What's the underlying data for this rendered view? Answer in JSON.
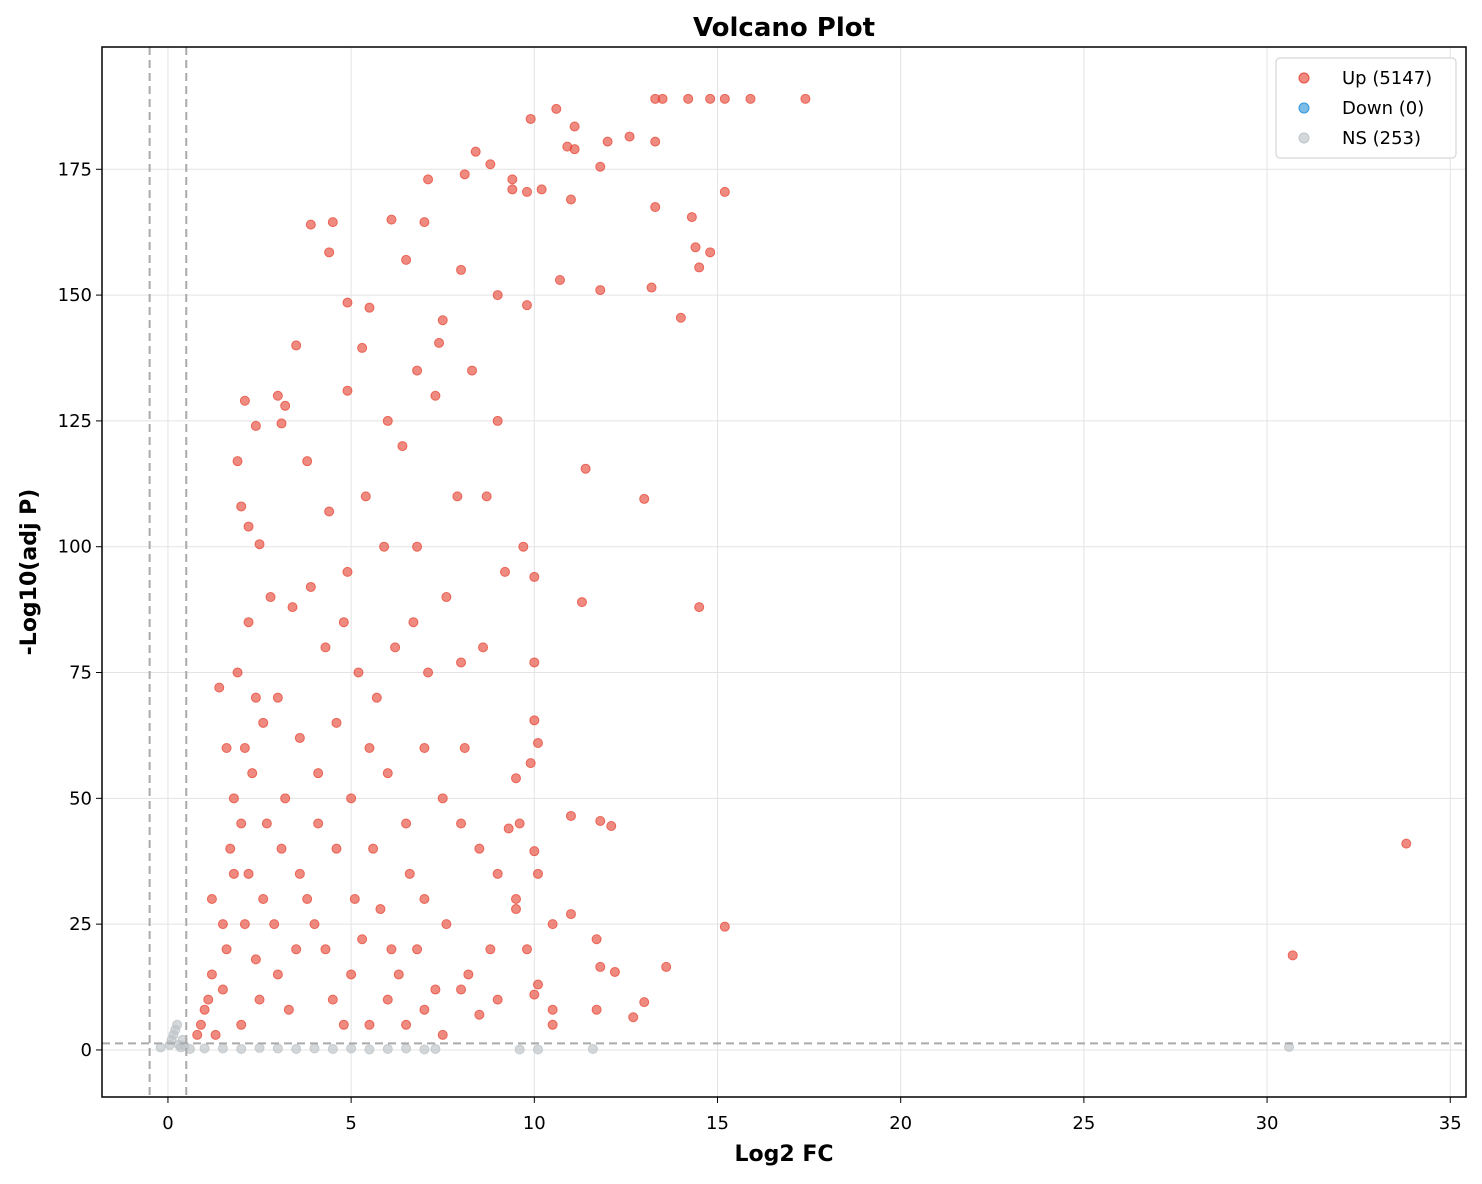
{
  "chart_data": {
    "type": "scatter",
    "title": "Volcano Plot",
    "x_label": "Log2 FC",
    "y_label": "-Log10(adj P)",
    "xlim": [
      -1.8,
      35.43
    ],
    "ylim": [
      -9.35,
      199.3
    ],
    "xticks": [
      0,
      5,
      10,
      15,
      20,
      25,
      30,
      35
    ],
    "yticks": [
      0,
      25,
      50,
      75,
      100,
      125,
      150,
      175
    ],
    "grid": true,
    "legend": "upper right",
    "thresholds": {
      "x": [
        -0.5,
        0.5
      ],
      "y": 1.3
    },
    "series": [
      {
        "name": "Up (5147)",
        "color": "#e74c3c",
        "x": [
          13.3,
          13.5,
          14.2,
          14.8,
          15.2,
          15.9,
          17.4,
          10.6,
          9.9,
          11.1,
          12.6,
          13.3,
          12.0,
          10.9,
          11.1,
          8.4,
          11.8,
          8.8,
          7.1,
          8.1,
          9.4,
          9.4,
          9.8,
          10.2,
          15.2,
          11.0,
          13.3,
          14.3,
          3.9,
          4.5,
          6.1,
          7.0,
          14.4,
          14.8,
          4.4,
          6.5,
          14.5,
          10.7,
          13.2,
          4.9,
          11.8,
          14.0,
          5.5,
          3.5,
          5.3,
          7.4,
          2.1,
          3.0,
          3.2,
          3.1,
          2.4,
          4.9,
          1.9,
          3.8,
          11.4,
          13.0,
          2.0,
          2.2,
          2.5,
          10.0,
          14.5,
          11.3,
          10.0,
          11.0,
          11.8,
          12.1,
          15.2,
          30.7,
          33.8,
          11.7,
          13.6,
          11.8,
          12.2,
          12.7,
          13.0,
          11.7,
          10.5,
          10.5,
          10.0,
          9.8,
          10.1,
          11.0,
          10.5,
          10.1,
          10.0,
          9.9,
          10.0,
          10.1,
          9.3,
          9.6,
          9.5,
          9.5,
          0.8,
          1.0,
          1.2,
          1.5,
          1.8,
          2.0,
          2.3,
          2.6,
          1.4,
          1.6,
          1.9,
          2.2,
          2.8,
          3.4,
          3.9,
          4.3,
          4.8,
          5.2,
          5.7,
          6.2,
          6.7,
          7.1,
          7.6,
          8.0,
          8.6,
          3.0,
          3.6,
          4.1,
          4.6,
          5.0,
          5.5,
          6.0,
          6.5,
          7.0,
          7.5,
          8.0,
          8.5,
          9.0,
          9.5,
          8.8,
          8.2,
          7.6,
          7.0,
          6.6,
          6.1,
          5.6,
          5.1,
          4.6,
          4.1,
          3.6,
          3.1,
          2.6,
          2.1,
          1.6,
          1.1,
          0.9,
          1.3,
          2.0,
          2.5,
          3.0,
          3.5,
          4.0,
          4.5,
          5.0,
          5.5,
          6.0,
          6.5,
          7.0,
          7.5,
          8.0,
          8.5,
          9.0,
          3.2,
          2.7,
          2.2,
          1.7,
          1.2,
          3.8,
          4.3,
          4.8,
          5.3,
          5.8,
          6.3,
          6.8,
          7.3,
          2.4,
          2.9,
          3.3,
          1.5,
          1.8,
          2.1,
          2.4,
          4.4,
          5.4,
          6.4,
          7.3,
          8.3,
          9.0,
          7.9,
          6.8,
          5.9,
          4.9,
          8.7,
          9.7,
          9.2,
          8.1,
          9.8,
          9.0,
          8.0,
          7.5,
          6.8,
          6.0
        ],
        "values": [
          189,
          189,
          189,
          189,
          189,
          189,
          189,
          187,
          185,
          183.5,
          181.5,
          180.5,
          180.5,
          179.5,
          179,
          178.5,
          175.5,
          176,
          173,
          174,
          173,
          171,
          170.5,
          171,
          170.5,
          169,
          167.5,
          165.5,
          164,
          164.5,
          165,
          164.5,
          159.5,
          158.5,
          158.5,
          157,
          155.5,
          153,
          151.5,
          148.5,
          151,
          145.5,
          147.5,
          140,
          139.5,
          140.5,
          129,
          130,
          128,
          124.5,
          124,
          131,
          117,
          117,
          115.5,
          109.5,
          108,
          104,
          100.5,
          94,
          88,
          89,
          77,
          46.5,
          45.5,
          44.5,
          24.5,
          18.8,
          41,
          22,
          16.5,
          16.5,
          15.5,
          6.5,
          9.5,
          8,
          8,
          5,
          11,
          20,
          13,
          27,
          25,
          35,
          39.5,
          57,
          65.5,
          61,
          44,
          45,
          54,
          28,
          3,
          8,
          15,
          25,
          35,
          45,
          55,
          65,
          72,
          60,
          75,
          85,
          90,
          88,
          92,
          80,
          85,
          75,
          70,
          80,
          85,
          75,
          90,
          77,
          80,
          70,
          62,
          55,
          65,
          50,
          60,
          55,
          45,
          60,
          50,
          45,
          40,
          35,
          30,
          20,
          15,
          25,
          30,
          35,
          20,
          40,
          30,
          40,
          45,
          35,
          40,
          30,
          25,
          20,
          10,
          5,
          3,
          5,
          10,
          15,
          20,
          25,
          10,
          15,
          5,
          10,
          5,
          8,
          3,
          12,
          7,
          10,
          50,
          45,
          35,
          40,
          30,
          30,
          20,
          5,
          22,
          28,
          15,
          20,
          12,
          18,
          25,
          8,
          12,
          50,
          60,
          70,
          107,
          110,
          120,
          130,
          135,
          125,
          110,
          100,
          100,
          95,
          110,
          100,
          95,
          60,
          148,
          150,
          155,
          145,
          135,
          125
        ]
      },
      {
        "name": "Down (0)",
        "color": "#3498db",
        "x": [],
        "values": []
      },
      {
        "name": "NS (253)",
        "color": "#bdc3c7",
        "x": [
          -0.2,
          0.05,
          0.1,
          0.15,
          0.2,
          0.25,
          0.3,
          0.35,
          0.4,
          0.45,
          0.6,
          1,
          1.5,
          2,
          2.5,
          3,
          3.5,
          4,
          4.5,
          5,
          5.5,
          6,
          6.5,
          7,
          7.3,
          9.6,
          10.1,
          11.6,
          30.6
        ],
        "values": [
          0.5,
          1,
          2,
          3,
          4,
          5,
          1,
          0.5,
          2,
          0.8,
          0.2,
          0.3,
          0.3,
          0.2,
          0.4,
          0.3,
          0.2,
          0.3,
          0.2,
          0.3,
          0.1,
          0.2,
          0.3,
          0.1,
          0.2,
          0.1,
          0.1,
          0.2,
          0.6
        ]
      }
    ]
  }
}
